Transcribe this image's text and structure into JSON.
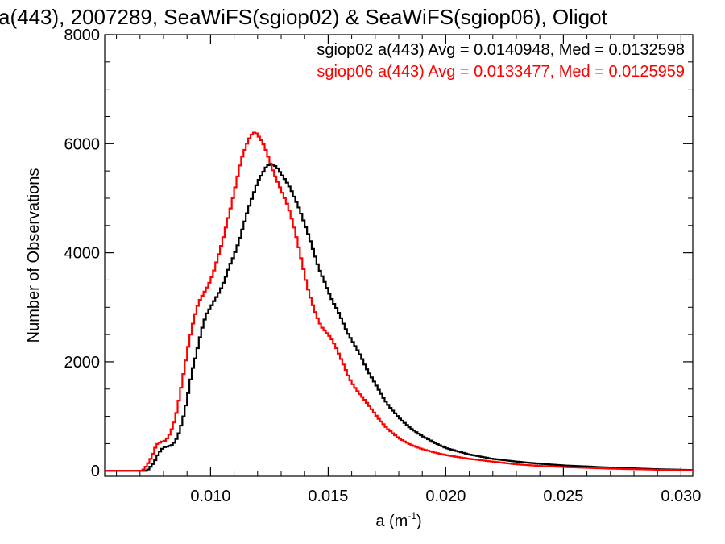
{
  "chart_data": {
    "type": "line",
    "title": "a(443), 2007289, SeaWiFS(sgiop02) & SeaWiFS(sgiop06), Oligot",
    "xlabel": "a (m",
    "xlabel_sup": "-1",
    "xlabel_close": ")",
    "ylabel": "Number of Observations",
    "xlim": [
      0.0055,
      0.0305
    ],
    "ylim": [
      -100,
      8000
    ],
    "x_ticks": [
      0.01,
      0.015,
      0.02,
      0.025,
      0.03
    ],
    "x_tick_labels": [
      "0.010",
      "0.015",
      "0.020",
      "0.025",
      "0.030"
    ],
    "y_ticks": [
      0,
      2000,
      4000,
      6000,
      8000
    ],
    "y_tick_labels": [
      "0",
      "2000",
      "4000",
      "6000",
      "8000"
    ],
    "grid": false,
    "legend_position": "top-right",
    "series": [
      {
        "name": "sgiop02 a(443) Avg = 0.0140948, Med = 0.0132598",
        "color": "#000000",
        "knots": [
          [
            0.0073,
            0
          ],
          [
            0.0076,
            150
          ],
          [
            0.0078,
            330
          ],
          [
            0.008,
            430
          ],
          [
            0.0082,
            450
          ],
          [
            0.0084,
            480
          ],
          [
            0.0086,
            620
          ],
          [
            0.0088,
            900
          ],
          [
            0.009,
            1300
          ],
          [
            0.0092,
            1800
          ],
          [
            0.0094,
            2150
          ],
          [
            0.0096,
            2550
          ],
          [
            0.0098,
            2850
          ],
          [
            0.01,
            3000
          ],
          [
            0.0102,
            3150
          ],
          [
            0.0104,
            3300
          ],
          [
            0.0106,
            3500
          ],
          [
            0.0108,
            3750
          ],
          [
            0.011,
            3950
          ],
          [
            0.0112,
            4200
          ],
          [
            0.0114,
            4500
          ],
          [
            0.0116,
            4800
          ],
          [
            0.0118,
            5050
          ],
          [
            0.012,
            5300
          ],
          [
            0.0122,
            5450
          ],
          [
            0.0124,
            5600
          ],
          [
            0.0126,
            5620
          ],
          [
            0.0128,
            5580
          ],
          [
            0.013,
            5450
          ],
          [
            0.0132,
            5320
          ],
          [
            0.0134,
            5180
          ],
          [
            0.0136,
            4980
          ],
          [
            0.0138,
            4780
          ],
          [
            0.014,
            4530
          ],
          [
            0.0142,
            4280
          ],
          [
            0.0144,
            4000
          ],
          [
            0.0146,
            3720
          ],
          [
            0.0148,
            3520
          ],
          [
            0.015,
            3300
          ],
          [
            0.0152,
            3100
          ],
          [
            0.0154,
            2950
          ],
          [
            0.0156,
            2750
          ],
          [
            0.0158,
            2550
          ],
          [
            0.016,
            2400
          ],
          [
            0.0162,
            2250
          ],
          [
            0.0164,
            2100
          ],
          [
            0.0166,
            1900
          ],
          [
            0.0168,
            1750
          ],
          [
            0.017,
            1600
          ],
          [
            0.0172,
            1450
          ],
          [
            0.0174,
            1300
          ],
          [
            0.0176,
            1180
          ],
          [
            0.0178,
            1080
          ],
          [
            0.018,
            980
          ],
          [
            0.0185,
            780
          ],
          [
            0.019,
            640
          ],
          [
            0.0195,
            520
          ],
          [
            0.02,
            420
          ],
          [
            0.0205,
            360
          ],
          [
            0.021,
            300
          ],
          [
            0.022,
            220
          ],
          [
            0.023,
            170
          ],
          [
            0.024,
            130
          ],
          [
            0.025,
            100
          ],
          [
            0.026,
            80
          ],
          [
            0.027,
            60
          ],
          [
            0.028,
            45
          ],
          [
            0.029,
            30
          ],
          [
            0.03,
            20
          ],
          [
            0.0305,
            15
          ]
        ]
      },
      {
        "name": "sgiop06 a(443) Avg = 0.0133477, Med = 0.0125959",
        "color": "#ff0000",
        "knots": [
          [
            0.0071,
            0
          ],
          [
            0.0073,
            100
          ],
          [
            0.0075,
            260
          ],
          [
            0.0077,
            480
          ],
          [
            0.0079,
            530
          ],
          [
            0.0081,
            560
          ],
          [
            0.0083,
            700
          ],
          [
            0.0085,
            950
          ],
          [
            0.0087,
            1400
          ],
          [
            0.0089,
            1900
          ],
          [
            0.0091,
            2400
          ],
          [
            0.0093,
            2800
          ],
          [
            0.0095,
            3100
          ],
          [
            0.0097,
            3250
          ],
          [
            0.0099,
            3400
          ],
          [
            0.0101,
            3600
          ],
          [
            0.0103,
            3900
          ],
          [
            0.0105,
            4200
          ],
          [
            0.0107,
            4550
          ],
          [
            0.0109,
            4900
          ],
          [
            0.0111,
            5300
          ],
          [
            0.0113,
            5700
          ],
          [
            0.0115,
            5950
          ],
          [
            0.0117,
            6150
          ],
          [
            0.0119,
            6220
          ],
          [
            0.0121,
            6100
          ],
          [
            0.0123,
            5950
          ],
          [
            0.0125,
            5700
          ],
          [
            0.0127,
            5450
          ],
          [
            0.0129,
            5250
          ],
          [
            0.0131,
            5050
          ],
          [
            0.0133,
            4850
          ],
          [
            0.0135,
            4550
          ],
          [
            0.0137,
            4200
          ],
          [
            0.0139,
            3800
          ],
          [
            0.0141,
            3400
          ],
          [
            0.0143,
            3100
          ],
          [
            0.0145,
            2850
          ],
          [
            0.0147,
            2650
          ],
          [
            0.0149,
            2550
          ],
          [
            0.0151,
            2450
          ],
          [
            0.0153,
            2300
          ],
          [
            0.0155,
            2100
          ],
          [
            0.0157,
            1900
          ],
          [
            0.0159,
            1700
          ],
          [
            0.0161,
            1550
          ],
          [
            0.0163,
            1430
          ],
          [
            0.0165,
            1330
          ],
          [
            0.0167,
            1220
          ],
          [
            0.0169,
            1100
          ],
          [
            0.0171,
            980
          ],
          [
            0.0173,
            880
          ],
          [
            0.0175,
            780
          ],
          [
            0.018,
            600
          ],
          [
            0.0185,
            480
          ],
          [
            0.019,
            400
          ],
          [
            0.0195,
            340
          ],
          [
            0.02,
            290
          ],
          [
            0.021,
            220
          ],
          [
            0.022,
            170
          ],
          [
            0.023,
            120
          ],
          [
            0.024,
            90
          ],
          [
            0.025,
            70
          ],
          [
            0.026,
            55
          ],
          [
            0.027,
            40
          ],
          [
            0.028,
            30
          ],
          [
            0.029,
            20
          ],
          [
            0.0305,
            10
          ]
        ]
      }
    ]
  }
}
